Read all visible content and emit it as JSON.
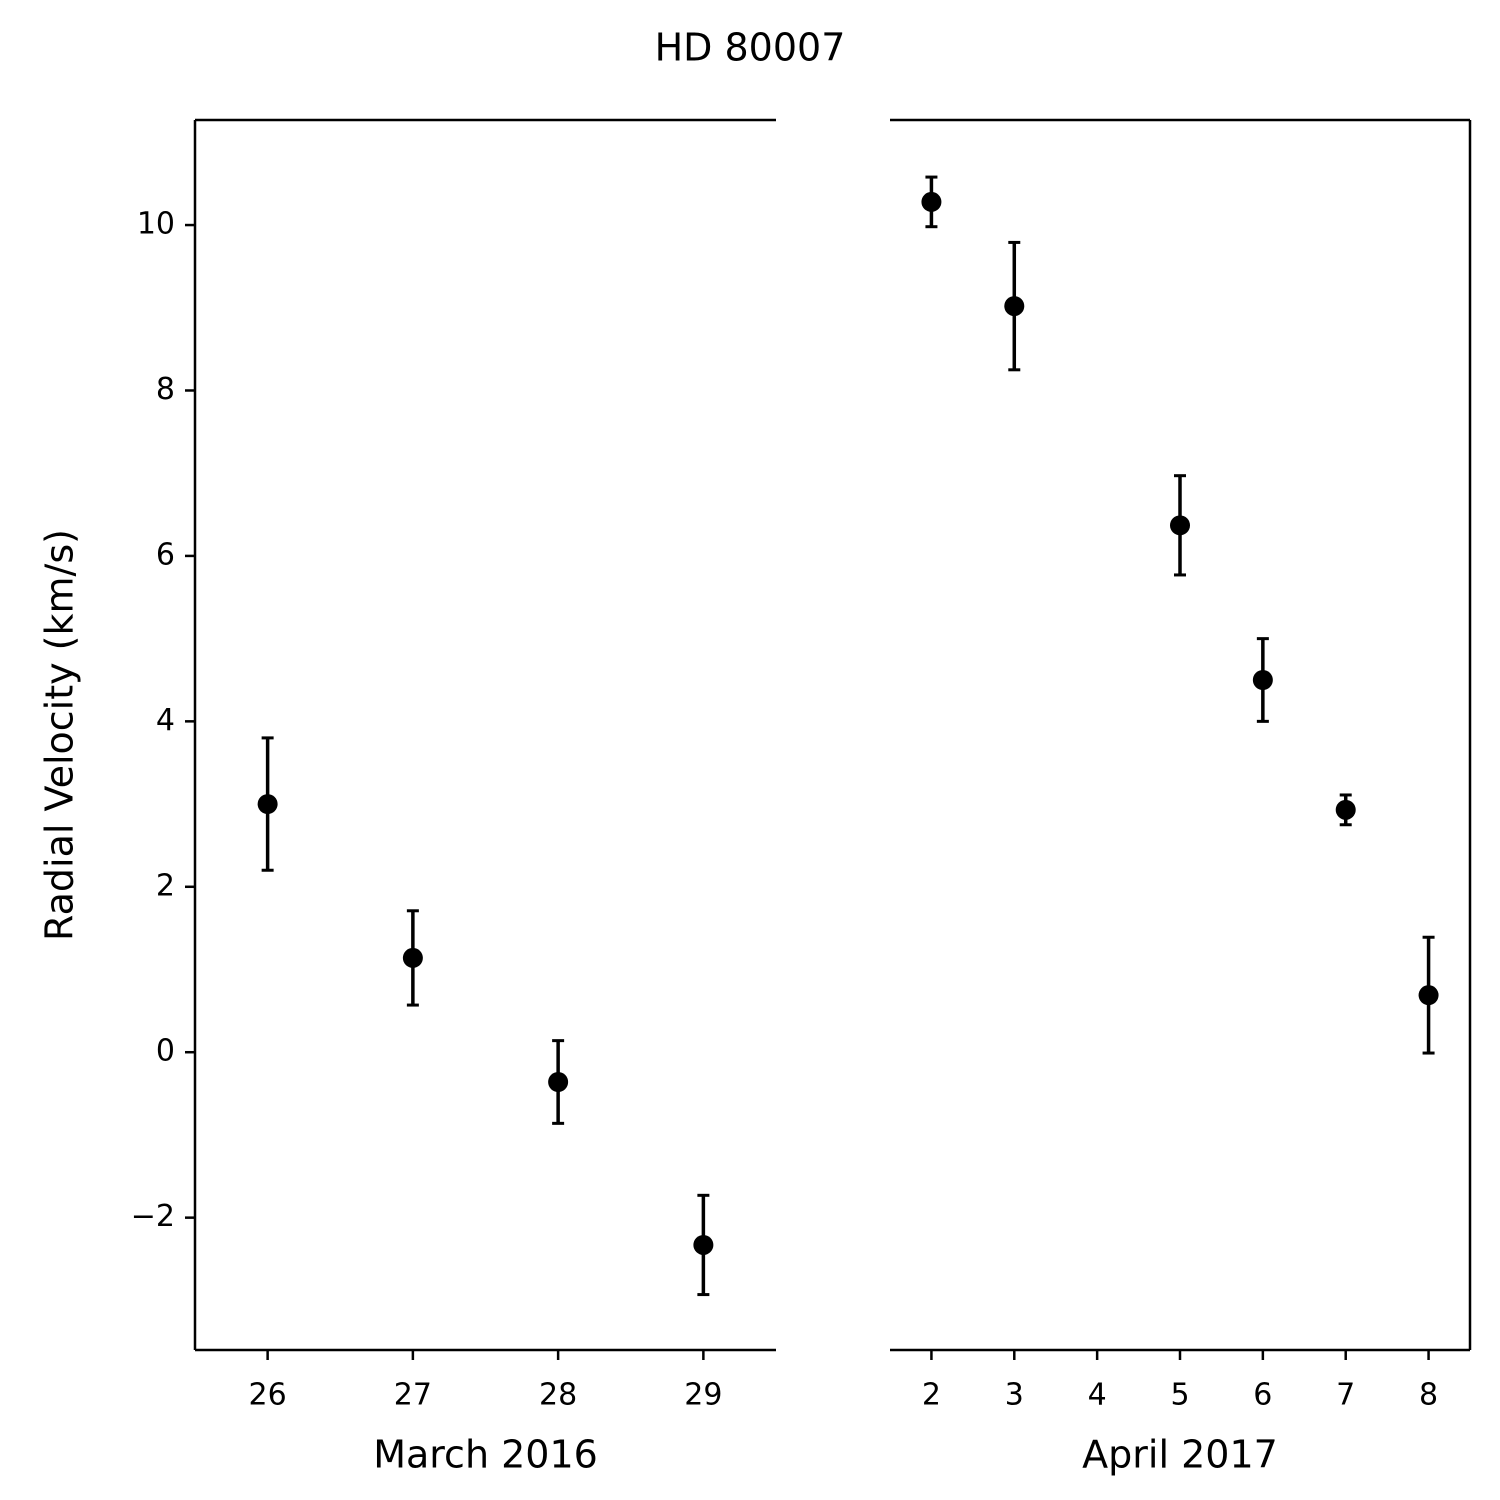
{
  "title": "HD 80007",
  "chart_data": [
    {
      "type": "errorbar",
      "xlabel": "March 2016",
      "ylabel": "Radial Velocity (km/s)",
      "x": [
        26,
        27,
        28,
        29
      ],
      "values": [
        3.0,
        1.14,
        -0.36,
        -2.33
      ],
      "errors": [
        0.8,
        0.57,
        0.5,
        0.6
      ],
      "color": "#000000",
      "xlim": [
        25.5,
        29.5
      ],
      "xticks": [
        26,
        27,
        28,
        29
      ],
      "ylim": [
        -3.6,
        11.27
      ],
      "yticks": [
        {
          "value": -2,
          "label": "−2"
        },
        0,
        2,
        4,
        6,
        8,
        10
      ]
    },
    {
      "type": "errorbar",
      "xlabel": "April 2017",
      "x": [
        2,
        3,
        5,
        6,
        7,
        8
      ],
      "values": [
        10.28,
        9.02,
        6.37,
        4.5,
        2.93,
        0.69
      ],
      "errors": [
        0.3,
        0.77,
        0.6,
        0.5,
        0.18,
        0.7
      ],
      "color": "#000000",
      "xlim": [
        1.5,
        8.5
      ],
      "xticks": [
        2,
        3,
        4,
        5,
        6,
        7,
        8
      ],
      "ylim": [
        -3.6,
        11.27
      ]
    }
  ]
}
